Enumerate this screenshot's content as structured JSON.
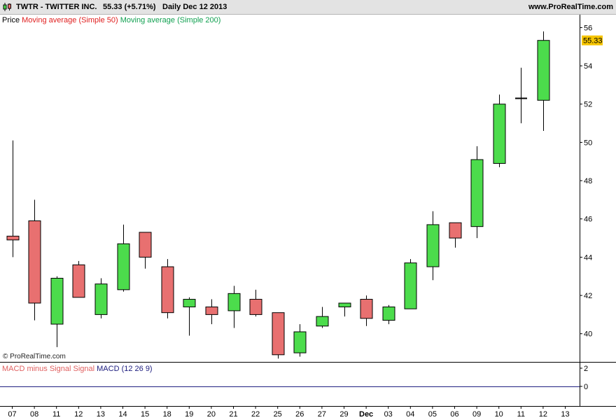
{
  "header": {
    "symbol": "TWTR - TWITTER INC.",
    "price_change": "55.33 (+5.71%)",
    "period_date": "Daily  Dec 12 2013",
    "site": "www.ProRealTime.com"
  },
  "legend": {
    "price": "Price",
    "ma50": "Moving average (Simple 50)",
    "ma200": "Moving average (Simple 200)",
    "macd_hist": "MACD minus Signal Signal",
    "macd": "MACD (12 26 9)"
  },
  "watermark": "© ProRealTime.com",
  "colors": {
    "up": "#4cdc4c",
    "down": "#e87070",
    "ma50": "#e02020",
    "ma200": "#10a050",
    "macd": "#202080",
    "last_price_bg": "#f5c400"
  },
  "chart_data": {
    "type": "candlestick",
    "symbol": "TWTR",
    "last_price_label": "55.33",
    "y_ticks": [
      40,
      42,
      44,
      46,
      48,
      50,
      52,
      54,
      56
    ],
    "ylim": [
      38.6,
      56.6
    ],
    "macd_ticks": [
      0,
      2
    ],
    "x_labels": [
      "07",
      "08",
      "11",
      "12",
      "13",
      "14",
      "15",
      "18",
      "19",
      "20",
      "21",
      "22",
      "25",
      "26",
      "27",
      "29",
      "Dec",
      "03",
      "04",
      "05",
      "06",
      "09",
      "10",
      "11",
      "12",
      "13"
    ],
    "candles": [
      {
        "d": "07",
        "o": 45.1,
        "h": 50.1,
        "l": 44.0,
        "c": 44.9
      },
      {
        "d": "08",
        "o": 45.9,
        "h": 47.0,
        "l": 40.7,
        "c": 41.6
      },
      {
        "d": "11",
        "o": 40.5,
        "h": 43.0,
        "l": 39.3,
        "c": 42.9
      },
      {
        "d": "12",
        "o": 43.6,
        "h": 43.8,
        "l": 41.9,
        "c": 41.9
      },
      {
        "d": "13",
        "o": 41.0,
        "h": 42.9,
        "l": 40.8,
        "c": 42.6
      },
      {
        "d": "14",
        "o": 42.3,
        "h": 45.7,
        "l": 42.2,
        "c": 44.7
      },
      {
        "d": "15",
        "o": 45.3,
        "h": 45.3,
        "l": 43.4,
        "c": 44.0
      },
      {
        "d": "18",
        "o": 43.5,
        "h": 43.9,
        "l": 40.8,
        "c": 41.1
      },
      {
        "d": "19",
        "o": 41.4,
        "h": 41.9,
        "l": 39.9,
        "c": 41.8
      },
      {
        "d": "20",
        "o": 41.4,
        "h": 41.8,
        "l": 40.5,
        "c": 41.0
      },
      {
        "d": "21",
        "o": 41.2,
        "h": 42.5,
        "l": 40.3,
        "c": 42.1
      },
      {
        "d": "22",
        "o": 41.8,
        "h": 42.3,
        "l": 40.9,
        "c": 41.0
      },
      {
        "d": "25",
        "o": 41.1,
        "h": 41.1,
        "l": 38.7,
        "c": 38.9
      },
      {
        "d": "26",
        "o": 39.0,
        "h": 40.5,
        "l": 38.8,
        "c": 40.1
      },
      {
        "d": "27",
        "o": 40.4,
        "h": 41.4,
        "l": 40.3,
        "c": 40.9
      },
      {
        "d": "29",
        "o": 41.4,
        "h": 41.6,
        "l": 40.9,
        "c": 41.6
      },
      {
        "d": "Dec",
        "o": 41.8,
        "h": 42.0,
        "l": 40.4,
        "c": 40.8
      },
      {
        "d": "03",
        "o": 40.7,
        "h": 41.5,
        "l": 40.5,
        "c": 41.4
      },
      {
        "d": "04",
        "o": 41.3,
        "h": 43.9,
        "l": 41.3,
        "c": 43.7
      },
      {
        "d": "05",
        "o": 43.5,
        "h": 46.4,
        "l": 42.8,
        "c": 45.7
      },
      {
        "d": "06",
        "o": 45.8,
        "h": 45.8,
        "l": 44.5,
        "c": 45.0
      },
      {
        "d": "09",
        "o": 45.6,
        "h": 49.8,
        "l": 45.0,
        "c": 49.1
      },
      {
        "d": "10",
        "o": 48.9,
        "h": 52.5,
        "l": 48.7,
        "c": 52.0
      },
      {
        "d": "11",
        "o": 52.3,
        "h": 53.9,
        "l": 51.0,
        "c": 52.3
      },
      {
        "d": "12",
        "o": 52.2,
        "h": 55.8,
        "l": 50.6,
        "c": 55.33
      }
    ]
  }
}
